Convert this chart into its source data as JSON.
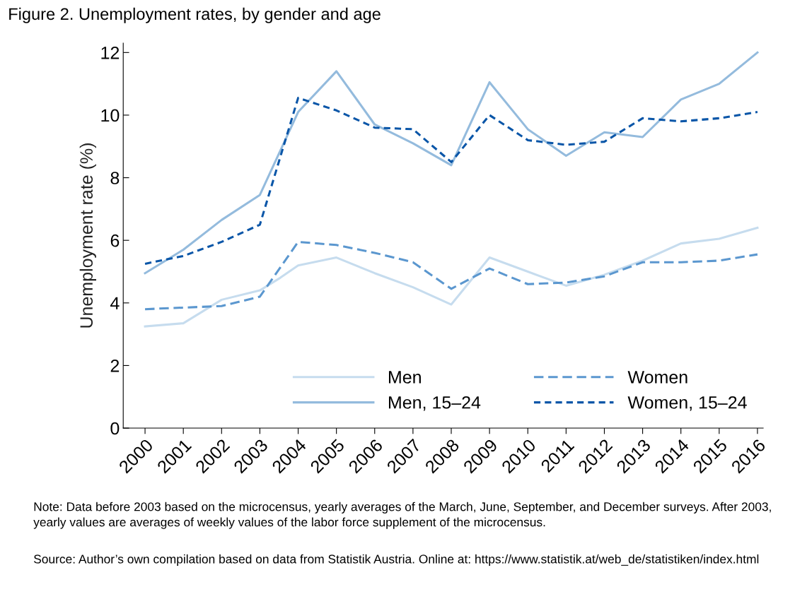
{
  "chart_data": {
    "type": "line",
    "title": "Figure 2. Unemployment rates, by gender and age",
    "ylabel": "Unemployment rate (%)",
    "xlim": [
      1999.43,
      2016.15
    ],
    "xticks": [
      2000,
      2001,
      2002,
      2003,
      2004,
      2005,
      2006,
      2007,
      2008,
      2009,
      2010,
      2011,
      2012,
      2013,
      2014,
      2015,
      2016
    ],
    "ylim": [
      0,
      12.3
    ],
    "yticks": [
      0,
      2,
      4,
      6,
      8,
      10,
      12
    ],
    "grid": false,
    "legend": "bottom right",
    "marker": "none",
    "series": [
      {
        "name": "Men",
        "color": "#c6dcee",
        "line_style": "solid",
        "x": [
          2000,
          2001,
          2002,
          2003,
          2003.53,
          2004,
          2005,
          2006,
          2007,
          2008,
          2009,
          2010,
          2011,
          2012,
          2013,
          2014,
          2015,
          2016
        ],
        "values": [
          3.25,
          3.35,
          4.1,
          4.4,
          4.8,
          5.2,
          5.45,
          4.95,
          4.5,
          3.95,
          5.45,
          5.0,
          4.55,
          4.9,
          5.35,
          5.9,
          6.05,
          6.4
        ]
      },
      {
        "name": "Men, 15–24",
        "color": "#94bbdd",
        "line_style": "solid",
        "x": [
          2000,
          2001,
          2002,
          2003,
          2004,
          2005,
          2005.56,
          2006,
          2007,
          2008,
          2009,
          2010,
          2011,
          2012,
          2013,
          2014,
          2015,
          2016
        ],
        "values": [
          4.95,
          5.7,
          6.65,
          7.45,
          10.1,
          11.4,
          10.45,
          9.7,
          9.1,
          8.4,
          11.05,
          9.55,
          8.7,
          9.45,
          9.3,
          10.5,
          11.0,
          12.0
        ]
      },
      {
        "name": "Women",
        "color": "#5b97cf",
        "line_style": "dashed",
        "x": [
          2000,
          2001,
          2002,
          2003,
          2004,
          2005,
          2006,
          2007,
          2008,
          2009,
          2010,
          2011,
          2012,
          2013,
          2014,
          2015,
          2016
        ],
        "values": [
          3.8,
          3.85,
          3.9,
          4.2,
          5.95,
          5.85,
          5.6,
          5.3,
          4.45,
          5.1,
          4.6,
          4.65,
          4.85,
          5.3,
          5.3,
          5.35,
          5.55
        ]
      },
      {
        "name": "Women, 15–24",
        "color": "#0a56a8",
        "line_style": "dotted",
        "x": [
          2000,
          2001,
          2002,
          2003,
          2004,
          2005,
          2006,
          2007,
          2008,
          2009,
          2010,
          2011,
          2012,
          2013,
          2014,
          2015,
          2016
        ],
        "values": [
          5.25,
          5.5,
          5.95,
          6.5,
          10.55,
          10.15,
          9.6,
          9.55,
          8.5,
          10.0,
          9.2,
          9.05,
          9.15,
          9.9,
          9.8,
          9.9,
          10.1
        ]
      }
    ],
    "annotations": [
      "Note: Data before 2003 based on the microcensus, yearly averages of the March, June, September, and December surveys. After 2003, yearly values are averages of weekly values of the labor force supplement of the microcensus.",
      "Source: Author’s own compilation based on data from Statistik Austria. Online at: https://www.statistik.at/web_de/statistiken/index.html"
    ]
  }
}
